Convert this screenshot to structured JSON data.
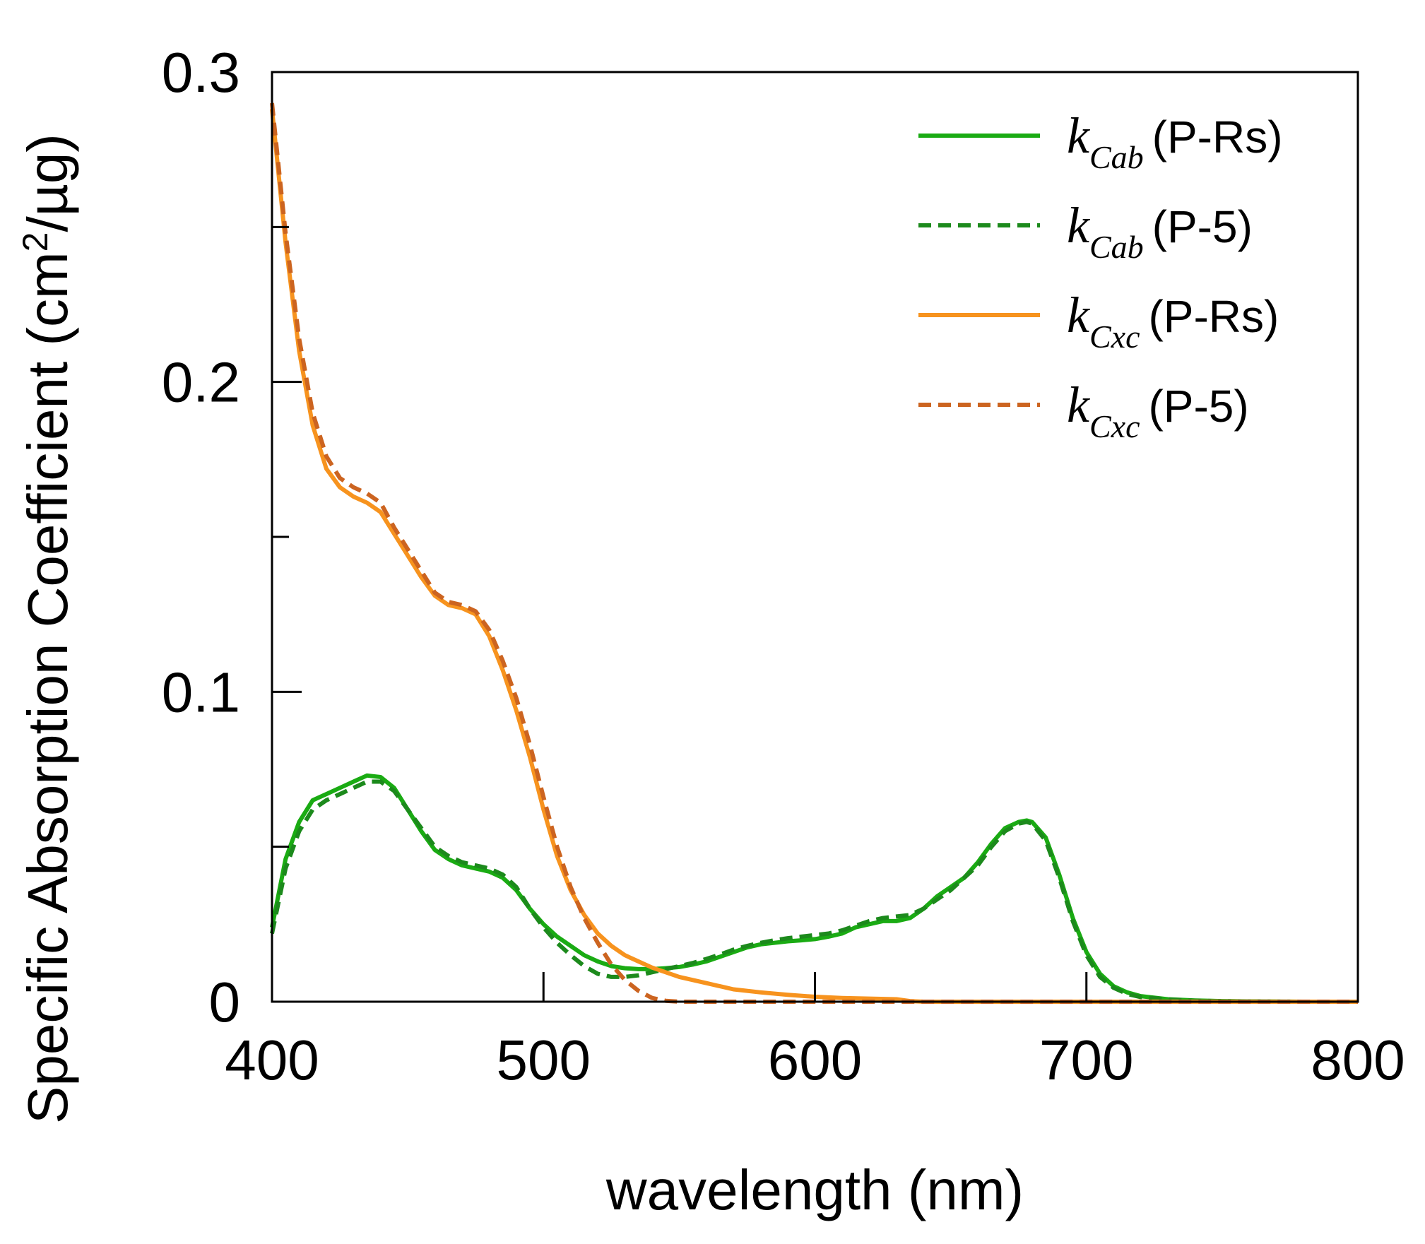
{
  "chart_data": {
    "type": "line",
    "xlabel": "wavelength (nm)",
    "ylabel": "Specific Absorption Coefficient (cm²/µg)",
    "ylabel_parts": {
      "before": "Specific Absorption Coefficient (cm",
      "sup": "2",
      "after": "/µg)"
    },
    "xlim": [
      400,
      800
    ],
    "ylim": [
      0,
      0.3
    ],
    "x_ticks": [
      {
        "value": 400,
        "label": "400"
      },
      {
        "value": 500,
        "label": "500"
      },
      {
        "value": 600,
        "label": "600"
      },
      {
        "value": 700,
        "label": "700"
      },
      {
        "value": 800,
        "label": "800"
      }
    ],
    "y_ticks": [
      {
        "value": 0,
        "label": "0"
      },
      {
        "value": 0.1,
        "label": "0.1"
      },
      {
        "value": 0.2,
        "label": "0.2"
      },
      {
        "value": 0.3,
        "label": "0.3"
      }
    ],
    "y_minor_ticks": [
      0.05,
      0.15,
      0.25
    ],
    "grid": false,
    "legend_position": "top-right",
    "series": [
      {
        "name": "k_Cab (P-Rs)",
        "legend": {
          "k": "k",
          "sub": "Cab",
          "label": "(P-Rs)"
        },
        "color": "#1aab13",
        "dash": "solid",
        "x": [
          400,
          405,
          410,
          415,
          420,
          425,
          430,
          435,
          440,
          445,
          450,
          455,
          460,
          465,
          470,
          475,
          480,
          485,
          490,
          495,
          500,
          505,
          510,
          515,
          520,
          525,
          530,
          535,
          540,
          545,
          550,
          555,
          560,
          565,
          570,
          575,
          580,
          585,
          590,
          595,
          600,
          605,
          610,
          615,
          620,
          625,
          630,
          635,
          640,
          645,
          650,
          655,
          660,
          665,
          670,
          675,
          678,
          680,
          685,
          690,
          695,
          700,
          705,
          710,
          715,
          720,
          730,
          740,
          750,
          760,
          780,
          800
        ],
        "y": [
          0.024,
          0.046,
          0.058,
          0.065,
          0.067,
          0.069,
          0.071,
          0.073,
          0.0725,
          0.069,
          0.062,
          0.055,
          0.049,
          0.046,
          0.044,
          0.043,
          0.042,
          0.04,
          0.036,
          0.03,
          0.025,
          0.021,
          0.018,
          0.015,
          0.013,
          0.0115,
          0.0108,
          0.0105,
          0.0105,
          0.0108,
          0.0112,
          0.012,
          0.013,
          0.0145,
          0.016,
          0.0175,
          0.0185,
          0.019,
          0.0195,
          0.0198,
          0.0202,
          0.021,
          0.022,
          0.024,
          0.025,
          0.026,
          0.026,
          0.027,
          0.03,
          0.034,
          0.037,
          0.04,
          0.045,
          0.051,
          0.056,
          0.058,
          0.0585,
          0.058,
          0.053,
          0.041,
          0.027,
          0.016,
          0.009,
          0.005,
          0.003,
          0.0018,
          0.0008,
          0.0004,
          0.0002,
          0.0001,
          0,
          0
        ]
      },
      {
        "name": "k_Cab (P-5)",
        "legend": {
          "k": "k",
          "sub": "Cab",
          "label": "(P-5)"
        },
        "color": "#1c8a1c",
        "dash": "dashed",
        "x": [
          400,
          405,
          410,
          415,
          420,
          425,
          430,
          435,
          440,
          445,
          450,
          455,
          460,
          465,
          470,
          475,
          480,
          485,
          490,
          495,
          500,
          505,
          510,
          515,
          520,
          525,
          530,
          535,
          540,
          545,
          550,
          555,
          560,
          565,
          570,
          575,
          580,
          585,
          590,
          595,
          600,
          605,
          610,
          615,
          620,
          625,
          630,
          635,
          640,
          645,
          650,
          655,
          660,
          665,
          670,
          675,
          678,
          680,
          685,
          690,
          695,
          700,
          705,
          710,
          715,
          720,
          730,
          740,
          750,
          760,
          780,
          800
        ],
        "y": [
          0.022,
          0.043,
          0.055,
          0.062,
          0.065,
          0.067,
          0.069,
          0.071,
          0.071,
          0.068,
          0.062,
          0.056,
          0.05,
          0.047,
          0.045,
          0.044,
          0.043,
          0.041,
          0.037,
          0.03,
          0.024,
          0.019,
          0.015,
          0.0115,
          0.009,
          0.008,
          0.008,
          0.0085,
          0.0095,
          0.0105,
          0.0115,
          0.0125,
          0.0138,
          0.0152,
          0.0168,
          0.018,
          0.019,
          0.0198,
          0.0205,
          0.021,
          0.0215,
          0.022,
          0.023,
          0.0245,
          0.026,
          0.027,
          0.0275,
          0.028,
          0.03,
          0.033,
          0.036,
          0.04,
          0.044,
          0.05,
          0.055,
          0.0575,
          0.058,
          0.0575,
          0.052,
          0.04,
          0.026,
          0.015,
          0.008,
          0.0045,
          0.0025,
          0.0015,
          0.0007,
          0.0003,
          0.0002,
          0.0001,
          0,
          0
        ]
      },
      {
        "name": "k_Cxc (P-Rs)",
        "legend": {
          "k": "k",
          "sub": "Cxc",
          "label": "(P-Rs)"
        },
        "color": "#f7931e",
        "dash": "solid",
        "x": [
          400,
          405,
          410,
          415,
          420,
          425,
          430,
          435,
          440,
          445,
          450,
          455,
          460,
          465,
          470,
          475,
          480,
          485,
          490,
          495,
          500,
          505,
          510,
          515,
          520,
          525,
          530,
          535,
          540,
          545,
          550,
          555,
          560,
          565,
          570,
          580,
          590,
          600,
          610,
          620,
          630,
          635,
          640,
          660,
          700,
          750,
          800
        ],
        "y": [
          0.288,
          0.245,
          0.21,
          0.186,
          0.172,
          0.166,
          0.163,
          0.161,
          0.158,
          0.151,
          0.144,
          0.137,
          0.131,
          0.128,
          0.127,
          0.125,
          0.118,
          0.107,
          0.094,
          0.079,
          0.062,
          0.047,
          0.036,
          0.028,
          0.022,
          0.018,
          0.015,
          0.013,
          0.011,
          0.0095,
          0.008,
          0.007,
          0.006,
          0.005,
          0.004,
          0.003,
          0.0022,
          0.0016,
          0.0012,
          0.001,
          0.0008,
          0.0002,
          0,
          0,
          0,
          0,
          0
        ]
      },
      {
        "name": "k_Cxc (P-5)",
        "legend": {
          "k": "k",
          "sub": "Cxc",
          "label": "(P-5)"
        },
        "color": "#cc6420",
        "dash": "dashed",
        "x": [
          400,
          405,
          410,
          415,
          420,
          425,
          430,
          435,
          440,
          445,
          450,
          455,
          460,
          465,
          470,
          475,
          480,
          485,
          490,
          495,
          500,
          505,
          510,
          515,
          520,
          525,
          530,
          535,
          540,
          545,
          550,
          555,
          560,
          570,
          600,
          650,
          700,
          800
        ],
        "y": [
          0.29,
          0.248,
          0.214,
          0.19,
          0.176,
          0.169,
          0.166,
          0.164,
          0.161,
          0.153,
          0.146,
          0.139,
          0.132,
          0.129,
          0.128,
          0.126,
          0.12,
          0.11,
          0.098,
          0.083,
          0.066,
          0.05,
          0.037,
          0.027,
          0.019,
          0.012,
          0.007,
          0.0035,
          0.0012,
          0.0003,
          0,
          0,
          0,
          0,
          0,
          0,
          0,
          0
        ]
      }
    ]
  }
}
